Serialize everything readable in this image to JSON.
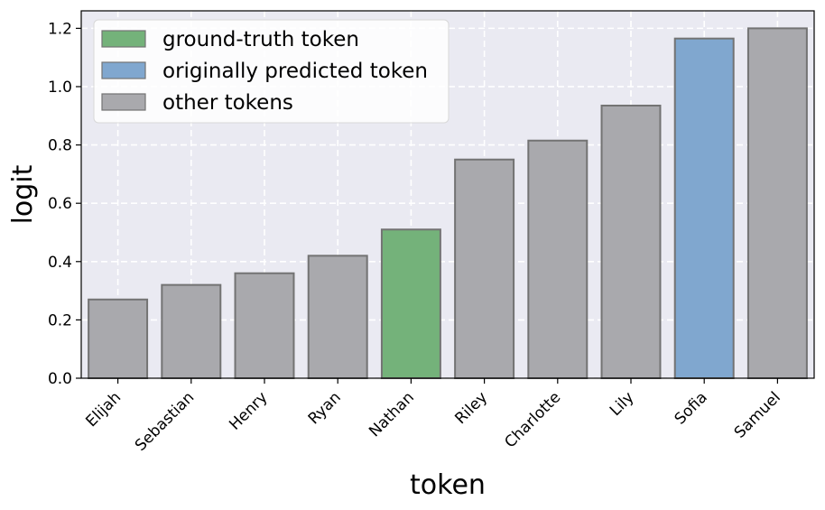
{
  "chart_data": {
    "type": "bar",
    "xlabel": "token",
    "ylabel": "logit",
    "ylim": [
      0,
      1.26
    ],
    "yticks": [
      0.0,
      0.2,
      0.4,
      0.6,
      0.8,
      1.0,
      1.2
    ],
    "ytick_labels": [
      "0.0",
      "0.2",
      "0.4",
      "0.6",
      "0.8",
      "1.0",
      "1.2"
    ],
    "grid": true,
    "legend_position": "top-left",
    "categories": [
      "Elijah",
      "Sebastian",
      "Henry",
      "Ryan",
      "Nathan",
      "Riley",
      "Charlotte",
      "Lily",
      "Sofia",
      "Samuel"
    ],
    "values": [
      0.27,
      0.32,
      0.36,
      0.42,
      0.51,
      0.75,
      0.815,
      0.935,
      1.165,
      1.2
    ],
    "bar_groups": [
      "other",
      "other",
      "other",
      "other",
      "ground_truth",
      "other",
      "other",
      "other",
      "predicted",
      "other"
    ],
    "legend": [
      {
        "key": "ground_truth",
        "label": "ground-truth token",
        "color": "#74b27a"
      },
      {
        "key": "predicted",
        "label": "originally predicted token",
        "color": "#80a7cf"
      },
      {
        "key": "other",
        "label": "other tokens",
        "color": "#a9a9ad"
      }
    ],
    "colors": {
      "plot_background": "#eaeaf2",
      "grid": "#ffffff",
      "bar_edge": "#737373"
    }
  }
}
